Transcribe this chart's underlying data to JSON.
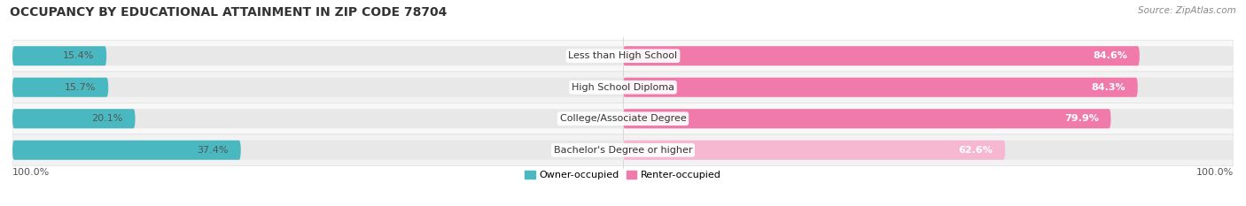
{
  "title": "OCCUPANCY BY EDUCATIONAL ATTAINMENT IN ZIP CODE 78704",
  "source": "Source: ZipAtlas.com",
  "categories": [
    "Less than High School",
    "High School Diploma",
    "College/Associate Degree",
    "Bachelor's Degree or higher"
  ],
  "owner_pct": [
    15.4,
    15.7,
    20.1,
    37.4
  ],
  "renter_pct": [
    84.6,
    84.3,
    79.9,
    62.6
  ],
  "owner_color": "#4ab8c1",
  "renter_colors": [
    "#f07aaa",
    "#f07aaa",
    "#f07aaa",
    "#f5b8d0"
  ],
  "bg_color": "#ffffff",
  "row_bg_color": "#f5f5f5",
  "bar_bg_color": "#e8e8e8",
  "bar_height": 0.62,
  "legend_owner": "Owner-occupied",
  "legend_renter": "Renter-occupied",
  "left_label": "100.0%",
  "right_label": "100.0%",
  "title_fontsize": 10,
  "source_fontsize": 7.5,
  "label_fontsize": 8,
  "cat_fontsize": 8
}
